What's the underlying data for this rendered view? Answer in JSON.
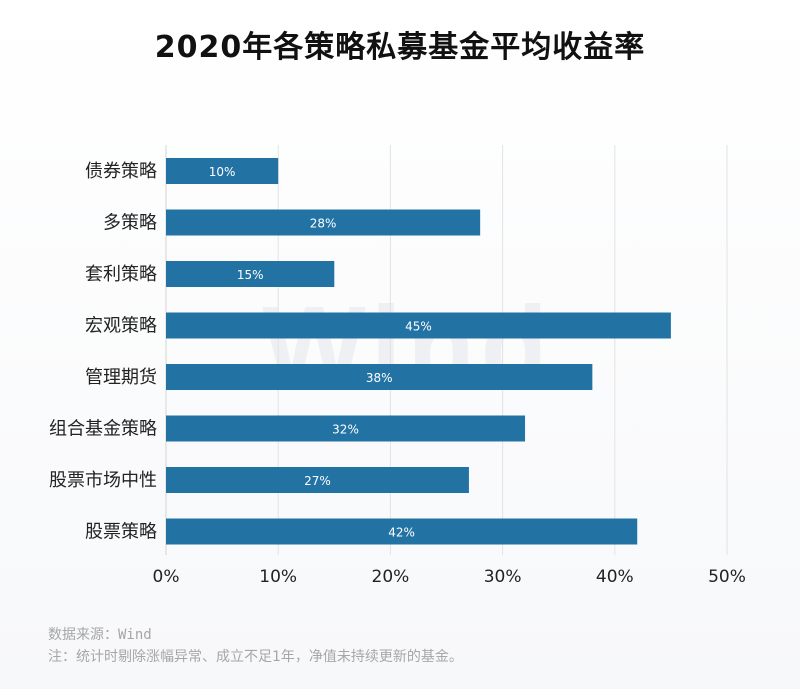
{
  "chart_data": {
    "type": "bar",
    "orientation": "horizontal",
    "title": "2020年各策略私募基金平均收益率",
    "categories": [
      "债券策略",
      "多策略",
      "套利策略",
      "宏观策略",
      "管理期货",
      "组合基金策略",
      "股票市场中性",
      "股票策略"
    ],
    "values": [
      10,
      28,
      15,
      45,
      38,
      32,
      27,
      42
    ],
    "data_labels": [
      "10%",
      "28%",
      "15%",
      "45%",
      "38%",
      "32%",
      "27%",
      "42%"
    ],
    "xlim": [
      0,
      50
    ],
    "x_ticks": [
      0,
      10,
      20,
      30,
      40,
      50
    ],
    "x_tick_labels": [
      "0%",
      "10%",
      "20%",
      "30%",
      "40%",
      "50%"
    ],
    "grid": "vertical",
    "bar_color": "#2273a4",
    "label_color": "#ffffff"
  },
  "watermark": "Wind",
  "footer": {
    "source": "数据来源：Wind",
    "note": "注：统计时剔除涨幅异常、成立不足1年，净值未持续更新的基金。"
  }
}
